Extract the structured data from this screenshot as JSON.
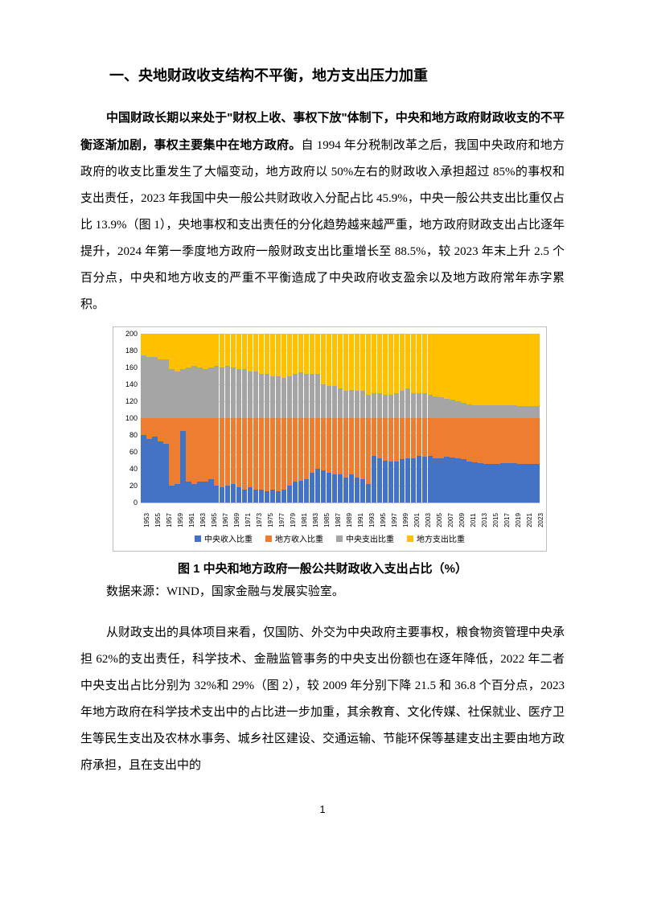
{
  "heading": "一、央地财政收支结构不平衡，地方支出压力加重",
  "para1_bold": "中国财政长期以来处于\"财权上收、事权下放\"体制下，中央和地方政府财政收支的不平衡逐渐加剧，事权主要集中在地方政府。",
  "para1_rest": "自 1994 年分税制改革之后，我国中央政府和地方政府的收支比重发生了大幅变动，地方政府以 50%左右的财政收入承担超过 85%的事权和支出责任，2023 年我国中央一般公共财政收入分配占比 45.9%，中央一般公共支出比重仅占比 13.9%（图 1），央地事权和支出责任的分化趋势越来越严重，地方政府财政支出占比逐年提升，2024 年第一季度地方政府一般财政支出比重增长至 88.5%，较 2023 年末上升 2.5 个百分点，中央和地方收支的严重不平衡造成了中央政府收支盈余以及地方政府常年赤字累积。",
  "figure1": {
    "type": "stacked-bar",
    "ylim": [
      0,
      200
    ],
    "ytick_step": 20,
    "yticks": [
      0,
      20,
      40,
      60,
      80,
      100,
      120,
      140,
      160,
      180,
      200
    ],
    "grid_color": "#d9d9d9",
    "border_color": "#bfbfbf",
    "background_color": "#ffffff",
    "tick_fontsize": 9,
    "legend_fontsize": 10,
    "series": [
      {
        "key": "central_rev",
        "label": "中央收入比重",
        "color": "#4472c4"
      },
      {
        "key": "local_rev",
        "label": "地方收入比重",
        "color": "#ed7d31"
      },
      {
        "key": "central_exp",
        "label": "中央支出比重",
        "color": "#a5a5a5"
      },
      {
        "key": "local_exp",
        "label": "地方支出比重",
        "color": "#ffc000"
      }
    ],
    "years": [
      1953,
      1954,
      1955,
      1956,
      1957,
      1958,
      1959,
      1960,
      1961,
      1962,
      1963,
      1964,
      1965,
      1966,
      1967,
      1968,
      1969,
      1970,
      1971,
      1972,
      1973,
      1974,
      1975,
      1976,
      1977,
      1978,
      1979,
      1980,
      1981,
      1982,
      1983,
      1984,
      1985,
      1986,
      1987,
      1988,
      1989,
      1990,
      1991,
      1992,
      1993,
      1994,
      1995,
      1996,
      1997,
      1998,
      1999,
      2000,
      2001,
      2002,
      2003,
      2004,
      2005,
      2006,
      2007,
      2008,
      2009,
      2010,
      2011,
      2012,
      2013,
      2014,
      2015,
      2016,
      2017,
      2018,
      2019,
      2020,
      2021,
      2022,
      2023
    ],
    "xtick_years": [
      1953,
      1955,
      1957,
      1959,
      1961,
      1963,
      1965,
      1967,
      1969,
      1971,
      1973,
      1975,
      1977,
      1979,
      1981,
      1983,
      1985,
      1987,
      1989,
      1991,
      1993,
      1995,
      1997,
      1999,
      2001,
      2003,
      2005,
      2007,
      2009,
      2011,
      2013,
      2015,
      2017,
      2019,
      2021,
      2023
    ],
    "data": [
      {
        "central_rev": 80,
        "local_rev": 20,
        "central_exp": 74,
        "local_exp": 26
      },
      {
        "central_rev": 75,
        "local_rev": 25,
        "central_exp": 72,
        "local_exp": 28
      },
      {
        "central_rev": 78,
        "local_rev": 22,
        "central_exp": 72,
        "local_exp": 28
      },
      {
        "central_rev": 72,
        "local_rev": 28,
        "central_exp": 70,
        "local_exp": 30
      },
      {
        "central_rev": 70,
        "local_rev": 30,
        "central_exp": 70,
        "local_exp": 30
      },
      {
        "central_rev": 20,
        "local_rev": 80,
        "central_exp": 58,
        "local_exp": 42
      },
      {
        "central_rev": 22,
        "local_rev": 78,
        "central_exp": 55,
        "local_exp": 45
      },
      {
        "central_rev": 85,
        "local_rev": 15,
        "central_exp": 58,
        "local_exp": 42
      },
      {
        "central_rev": 25,
        "local_rev": 75,
        "central_exp": 60,
        "local_exp": 40
      },
      {
        "central_rev": 22,
        "local_rev": 78,
        "central_exp": 62,
        "local_exp": 38
      },
      {
        "central_rev": 25,
        "local_rev": 75,
        "central_exp": 60,
        "local_exp": 40
      },
      {
        "central_rev": 25,
        "local_rev": 75,
        "central_exp": 58,
        "local_exp": 42
      },
      {
        "central_rev": 28,
        "local_rev": 72,
        "central_exp": 60,
        "local_exp": 40
      },
      {
        "central_rev": 20,
        "local_rev": 80,
        "central_exp": 62,
        "local_exp": 38
      },
      {
        "central_rev": 18,
        "local_rev": 82,
        "central_exp": 60,
        "local_exp": 40
      },
      {
        "central_rev": 20,
        "local_rev": 80,
        "central_exp": 62,
        "local_exp": 38
      },
      {
        "central_rev": 22,
        "local_rev": 78,
        "central_exp": 60,
        "local_exp": 40
      },
      {
        "central_rev": 18,
        "local_rev": 82,
        "central_exp": 58,
        "local_exp": 42
      },
      {
        "central_rev": 15,
        "local_rev": 85,
        "central_exp": 58,
        "local_exp": 42
      },
      {
        "central_rev": 18,
        "local_rev": 82,
        "central_exp": 55,
        "local_exp": 45
      },
      {
        "central_rev": 15,
        "local_rev": 85,
        "central_exp": 55,
        "local_exp": 45
      },
      {
        "central_rev": 15,
        "local_rev": 85,
        "central_exp": 52,
        "local_exp": 48
      },
      {
        "central_rev": 13,
        "local_rev": 87,
        "central_exp": 52,
        "local_exp": 48
      },
      {
        "central_rev": 15,
        "local_rev": 85,
        "central_exp": 50,
        "local_exp": 50
      },
      {
        "central_rev": 13,
        "local_rev": 87,
        "central_exp": 50,
        "local_exp": 50
      },
      {
        "central_rev": 15,
        "local_rev": 85,
        "central_exp": 48,
        "local_exp": 52
      },
      {
        "central_rev": 20,
        "local_rev": 80,
        "central_exp": 50,
        "local_exp": 50
      },
      {
        "central_rev": 25,
        "local_rev": 75,
        "central_exp": 52,
        "local_exp": 48
      },
      {
        "central_rev": 26,
        "local_rev": 74,
        "central_exp": 54,
        "local_exp": 46
      },
      {
        "central_rev": 28,
        "local_rev": 72,
        "central_exp": 52,
        "local_exp": 48
      },
      {
        "central_rev": 35,
        "local_rev": 65,
        "central_exp": 52,
        "local_exp": 48
      },
      {
        "central_rev": 40,
        "local_rev": 60,
        "central_exp": 52,
        "local_exp": 48
      },
      {
        "central_rev": 38,
        "local_rev": 62,
        "central_exp": 40,
        "local_exp": 60
      },
      {
        "central_rev": 35,
        "local_rev": 65,
        "central_exp": 38,
        "local_exp": 62
      },
      {
        "central_rev": 33,
        "local_rev": 67,
        "central_exp": 38,
        "local_exp": 62
      },
      {
        "central_rev": 33,
        "local_rev": 67,
        "central_exp": 35,
        "local_exp": 65
      },
      {
        "central_rev": 30,
        "local_rev": 70,
        "central_exp": 32,
        "local_exp": 68
      },
      {
        "central_rev": 33,
        "local_rev": 67,
        "central_exp": 33,
        "local_exp": 67
      },
      {
        "central_rev": 30,
        "local_rev": 70,
        "central_exp": 32,
        "local_exp": 68
      },
      {
        "central_rev": 28,
        "local_rev": 72,
        "central_exp": 32,
        "local_exp": 68
      },
      {
        "central_rev": 22,
        "local_rev": 78,
        "central_exp": 28,
        "local_exp": 72
      },
      {
        "central_rev": 55,
        "local_rev": 45,
        "central_exp": 30,
        "local_exp": 70
      },
      {
        "central_rev": 52,
        "local_rev": 48,
        "central_exp": 30,
        "local_exp": 70
      },
      {
        "central_rev": 50,
        "local_rev": 50,
        "central_exp": 28,
        "local_exp": 72
      },
      {
        "central_rev": 49,
        "local_rev": 51,
        "central_exp": 28,
        "local_exp": 72
      },
      {
        "central_rev": 49,
        "local_rev": 51,
        "central_exp": 30,
        "local_exp": 70
      },
      {
        "central_rev": 51,
        "local_rev": 49,
        "central_exp": 32,
        "local_exp": 68
      },
      {
        "central_rev": 52,
        "local_rev": 48,
        "central_exp": 35,
        "local_exp": 65
      },
      {
        "central_rev": 52,
        "local_rev": 48,
        "central_exp": 30,
        "local_exp": 70
      },
      {
        "central_rev": 55,
        "local_rev": 45,
        "central_exp": 30,
        "local_exp": 70
      },
      {
        "central_rev": 54,
        "local_rev": 46,
        "central_exp": 30,
        "local_exp": 70
      },
      {
        "central_rev": 55,
        "local_rev": 45,
        "central_exp": 28,
        "local_exp": 72
      },
      {
        "central_rev": 52,
        "local_rev": 48,
        "central_exp": 26,
        "local_exp": 74
      },
      {
        "central_rev": 52,
        "local_rev": 48,
        "central_exp": 25,
        "local_exp": 75
      },
      {
        "central_rev": 54,
        "local_rev": 46,
        "central_exp": 23,
        "local_exp": 77
      },
      {
        "central_rev": 53,
        "local_rev": 47,
        "central_exp": 22,
        "local_exp": 78
      },
      {
        "central_rev": 52,
        "local_rev": 48,
        "central_exp": 20,
        "local_exp": 80
      },
      {
        "central_rev": 51,
        "local_rev": 49,
        "central_exp": 18,
        "local_exp": 82
      },
      {
        "central_rev": 49,
        "local_rev": 51,
        "central_exp": 16,
        "local_exp": 84
      },
      {
        "central_rev": 48,
        "local_rev": 52,
        "central_exp": 15,
        "local_exp": 85
      },
      {
        "central_rev": 47,
        "local_rev": 53,
        "central_exp": 15,
        "local_exp": 85
      },
      {
        "central_rev": 46,
        "local_rev": 54,
        "central_exp": 15,
        "local_exp": 85
      },
      {
        "central_rev": 46,
        "local_rev": 54,
        "central_exp": 15,
        "local_exp": 85
      },
      {
        "central_rev": 46,
        "local_rev": 54,
        "central_exp": 15,
        "local_exp": 85
      },
      {
        "central_rev": 47,
        "local_rev": 53,
        "central_exp": 15,
        "local_exp": 85
      },
      {
        "central_rev": 47,
        "local_rev": 53,
        "central_exp": 15,
        "local_exp": 85
      },
      {
        "central_rev": 47,
        "local_rev": 53,
        "central_exp": 15,
        "local_exp": 85
      },
      {
        "central_rev": 46,
        "local_rev": 54,
        "central_exp": 14,
        "local_exp": 86
      },
      {
        "central_rev": 46,
        "local_rev": 54,
        "central_exp": 14,
        "local_exp": 86
      },
      {
        "central_rev": 46,
        "local_rev": 54,
        "central_exp": 14,
        "local_exp": 86
      },
      {
        "central_rev": 46,
        "local_rev": 54,
        "central_exp": 14,
        "local_exp": 86
      }
    ],
    "caption": "图 1   中央和地方政府一般公共财政收入支出占比（%）",
    "source": "数据来源：WIND，国家金融与发展实验室。"
  },
  "para2": "从财政支出的具体项目来看，仅国防、外交为中央政府主要事权，粮食物资管理中央承担 62%的支出责任，科学技术、金融监管事务的中央支出份额也在逐年降低，2022 年二者中央支出占比分别为 32%和 29%（图 2），较 2009 年分别下降 21.5 和 36.8 个百分点，2023 年地方政府在科学技术支出中的占比进一步加重，其余教育、文化传媒、社保就业、医疗卫生等民生支出及农林水事务、城乡社区建设、交通运输、节能环保等基建支出主要由地方政府承担，且在支出中的",
  "page_number": "1"
}
